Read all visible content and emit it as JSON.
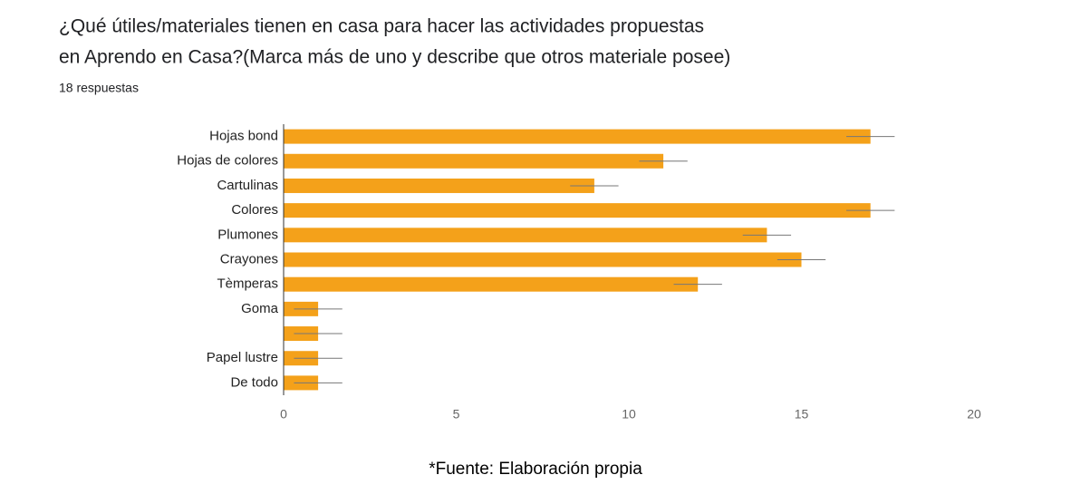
{
  "chart_data": {
    "type": "bar",
    "orientation": "horizontal",
    "title": [
      "¿Qué útiles/materiales tienen en casa  para hacer las actividades propuestas",
      "en Aprendo en Casa?(Marca más de uno y describe que otros materiale posee)"
    ],
    "subtitle": "18 respuestas",
    "categories": [
      "Hojas bond",
      "Hojas de colores",
      "Cartulinas",
      "Colores",
      "Plumones",
      "Crayones",
      "Tèmperas",
      "Goma",
      null,
      "Papel lustre",
      "De todo"
    ],
    "values": [
      17,
      11,
      9,
      17,
      14,
      15,
      12,
      1,
      1,
      1,
      1
    ],
    "errors": [
      0.7,
      0.7,
      0.7,
      0.7,
      0.7,
      0.7,
      0.7,
      0.7,
      0.7,
      0.7,
      0.7
    ],
    "color": "#f4a11a",
    "xlim": [
      0,
      20
    ],
    "xticks": [
      0,
      5,
      10,
      15,
      20
    ],
    "grid": false,
    "source": "*Fuente: Elaboración propia"
  }
}
